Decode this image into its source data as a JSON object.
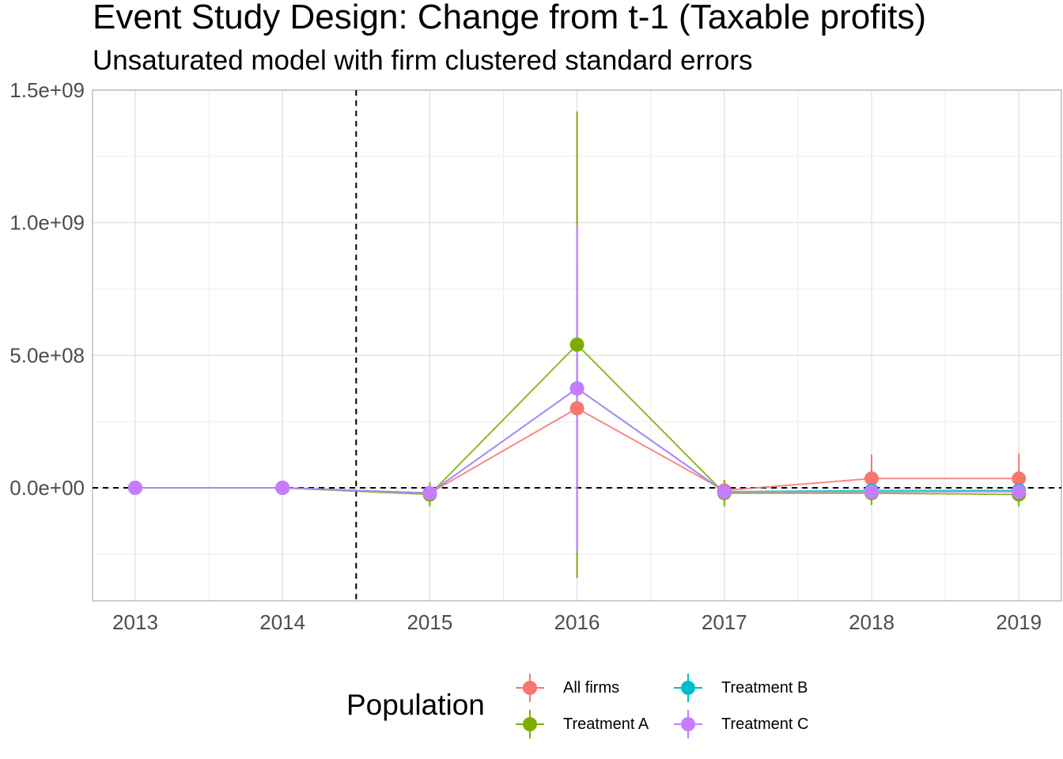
{
  "chart_data": {
    "type": "line",
    "title": "Event Study Design: Change from t-1 (Taxable profits)",
    "subtitle": "Unsaturated model with firm clustered standard errors",
    "x": [
      "2013",
      "2014",
      "2015",
      "2016",
      "2017",
      "2018",
      "2019"
    ],
    "y_ticks": [
      "1.5e+09",
      "1.0e+09",
      "5.0e+08",
      "0.0e+00"
    ],
    "y_tick_values": [
      1500000000,
      1000000000,
      500000000,
      0
    ],
    "ylim": [
      -430000000,
      1510000000
    ],
    "reference_lines": {
      "vertical_x": 2014.5,
      "horizontal_y": 0,
      "style": "dashed"
    },
    "grid": true,
    "legend": {
      "title": "Population",
      "position": "bottom",
      "entries": [
        "All firms",
        "Treatment A",
        "Treatment B",
        "Treatment C"
      ]
    },
    "series": [
      {
        "name": "All firms",
        "color": "#F8766D",
        "values": [
          0,
          0,
          -20000000,
          300000000,
          -10000000,
          35000000,
          35000000
        ],
        "ci_low": [
          0,
          0,
          -45000000,
          -220000000,
          -40000000,
          -30000000,
          -30000000
        ],
        "ci_high": [
          0,
          0,
          5000000,
          820000000,
          20000000,
          125000000,
          130000000
        ]
      },
      {
        "name": "Treatment A",
        "color": "#7CAE00",
        "values": [
          0,
          0,
          -25000000,
          540000000,
          -20000000,
          -20000000,
          -25000000
        ],
        "ci_low": [
          0,
          0,
          -70000000,
          -340000000,
          -70000000,
          -65000000,
          -70000000
        ],
        "ci_high": [
          0,
          0,
          20000000,
          1420000000,
          30000000,
          25000000,
          20000000
        ]
      },
      {
        "name": "Treatment B",
        "color": "#00BFC4",
        "values": [
          0,
          0,
          -20000000,
          375000000,
          -15000000,
          -10000000,
          -10000000
        ],
        "ci_low": [
          0,
          0,
          -50000000,
          -240000000,
          -40000000,
          -35000000,
          -35000000
        ],
        "ci_high": [
          0,
          0,
          10000000,
          990000000,
          10000000,
          15000000,
          15000000
        ]
      },
      {
        "name": "Treatment C",
        "color": "#C77CFF",
        "values": [
          0,
          0,
          -20000000,
          375000000,
          -15000000,
          -15000000,
          -15000000
        ],
        "ci_low": [
          0,
          0,
          -50000000,
          -240000000,
          -40000000,
          -40000000,
          -40000000
        ],
        "ci_high": [
          0,
          0,
          10000000,
          990000000,
          10000000,
          10000000,
          10000000
        ]
      }
    ]
  }
}
